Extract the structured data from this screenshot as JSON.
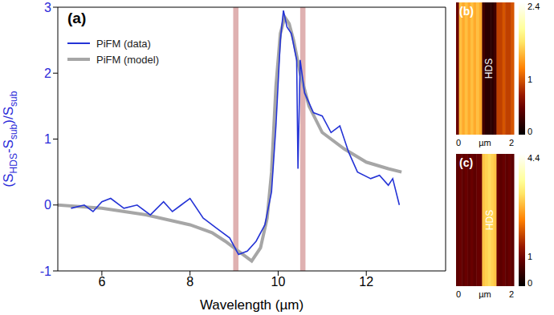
{
  "chart_data": [
    {
      "type": "line",
      "title": "(a)",
      "xlabel": "Wavelength (µm)",
      "ylabel": [
        "(S",
        "HDS",
        "-S",
        "sub",
        ")/S",
        "sub"
      ],
      "xlim": [
        5,
        13.8
      ],
      "xticks": [
        6,
        8,
        10,
        12
      ],
      "ylim": [
        -1,
        3
      ],
      "yticks": [
        -1,
        0,
        1,
        2,
        3
      ],
      "legend": "upper left",
      "bands": [
        {
          "x1": 8.98,
          "x2": 9.1,
          "color": "#d9a3a3"
        },
        {
          "x1": 10.5,
          "x2": 10.62,
          "color": "#d9a3a3"
        }
      ],
      "series": [
        {
          "name": "PiFM (data)",
          "color": "#2433d6",
          "x": [
            5.3,
            5.6,
            5.8,
            6.0,
            6.2,
            6.5,
            6.8,
            7.1,
            7.4,
            7.6,
            7.8,
            8.0,
            8.3,
            8.6,
            8.9,
            9.1,
            9.3,
            9.5,
            9.7,
            9.85,
            9.95,
            10.05,
            10.12,
            10.2,
            10.3,
            10.42,
            10.45,
            10.5,
            10.6,
            10.8,
            11.0,
            11.2,
            11.4,
            11.6,
            11.8,
            12.1,
            12.3,
            12.5,
            12.6,
            12.75
          ],
          "values": [
            -0.05,
            0,
            -0.1,
            0.05,
            0.1,
            -0.05,
            0,
            -0.15,
            0.05,
            -0.1,
            0,
            0.1,
            -0.2,
            -0.35,
            -0.5,
            -0.75,
            -0.7,
            -0.55,
            -0.3,
            0.2,
            1.2,
            2.5,
            2.95,
            2.7,
            2.6,
            2.2,
            0.55,
            2.2,
            1.7,
            1.4,
            1.35,
            1.1,
            1.2,
            0.8,
            0.5,
            0.4,
            0.45,
            0.3,
            0.4,
            0
          ]
        },
        {
          "name": "PiFM (model)",
          "color": "#a6a6a6",
          "x": [
            5.0,
            6.0,
            7.0,
            8.0,
            8.5,
            8.8,
            9.1,
            9.4,
            9.6,
            9.75,
            9.85,
            9.95,
            10.05,
            10.15,
            10.25,
            10.35,
            10.5,
            10.7,
            11.0,
            11.5,
            12.0,
            12.5,
            12.8
          ],
          "values": [
            0,
            -0.05,
            -0.15,
            -0.3,
            -0.42,
            -0.55,
            -0.7,
            -0.85,
            -0.65,
            -0.2,
            0.5,
            1.8,
            2.6,
            2.85,
            2.75,
            2.5,
            2.0,
            1.5,
            1.1,
            0.85,
            0.65,
            0.55,
            0.5
          ]
        }
      ]
    },
    {
      "type": "heatmap",
      "title": "(b)",
      "xlabel": "µm",
      "xlim": [
        0,
        2
      ],
      "xticks": [
        0,
        2
      ],
      "annotations": [
        {
          "text": "HDS",
          "x": 1.15
        }
      ],
      "x": [
        0.05,
        0.15,
        0.25,
        0.35,
        0.45,
        0.55,
        0.65,
        0.75,
        0.85,
        0.95,
        1.05,
        1.15,
        1.25,
        1.35,
        1.45,
        1.55,
        1.65,
        1.75,
        1.85,
        1.95
      ],
      "values": [
        0.5,
        1.5,
        1.4,
        1.5,
        1.4,
        1.5,
        1.4,
        1.5,
        1.4,
        0.3,
        0.2,
        0.2,
        0.2,
        0.3,
        0.9,
        0.9,
        1.0,
        0.9,
        0.9,
        1.0
      ],
      "colorbar_range": [
        0,
        2.4
      ],
      "colorbar_ticks": [
        0,
        1,
        2.4
      ]
    },
    {
      "type": "heatmap",
      "title": "(c)",
      "xlabel": "µm",
      "xlim": [
        0,
        2
      ],
      "xticks": [
        0,
        2
      ],
      "annotations": [
        {
          "text": "HDS",
          "x": 1.2
        }
      ],
      "x": [
        0.05,
        0.15,
        0.25,
        0.35,
        0.45,
        0.55,
        0.65,
        0.75,
        0.85,
        0.95,
        1.05,
        1.15,
        1.25,
        1.35,
        1.45,
        1.55,
        1.65,
        1.75,
        1.85,
        1.95
      ],
      "values": [
        0.8,
        0.9,
        0.8,
        0.9,
        0.8,
        0.9,
        0.8,
        0.9,
        0.9,
        2.8,
        2.9,
        3.0,
        2.9,
        2.8,
        0.9,
        0.8,
        0.9,
        0.8,
        0.9,
        0.8
      ],
      "colorbar_range": [
        0,
        4.4
      ],
      "colorbar_ticks": [
        0,
        1,
        4.4
      ]
    }
  ]
}
